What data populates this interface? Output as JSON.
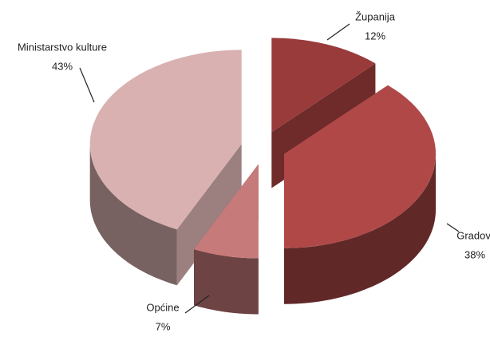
{
  "chart_data": {
    "type": "pie",
    "categories": [
      "Županija",
      "Gradovi",
      "Općine",
      "Ministarstvo kulture"
    ],
    "values": [
      12,
      38,
      7,
      43
    ],
    "value_labels": [
      "12%",
      "38%",
      "7%",
      "43%"
    ],
    "colors": [
      "#9a3b3b",
      "#b04848",
      "#c77a7a",
      "#d9b1b1"
    ]
  }
}
